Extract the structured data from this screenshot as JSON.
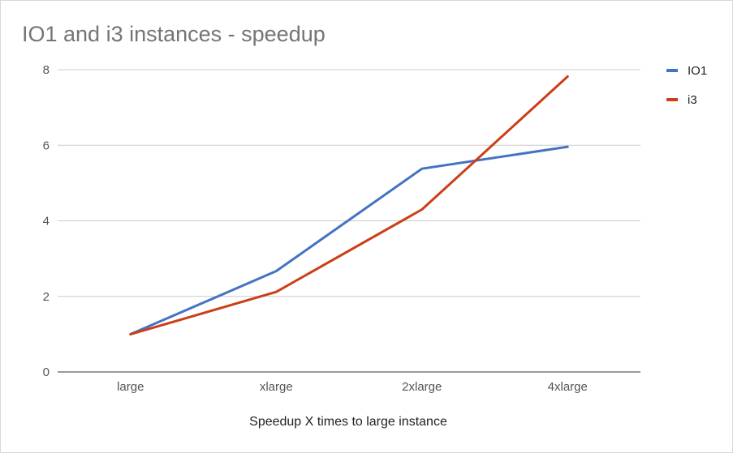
{
  "chart_data": {
    "type": "line",
    "title": "IO1 and i3 instances - speedup",
    "xlabel": "Speedup X times to large instance",
    "ylabel": "",
    "categories": [
      "large",
      "xlarge",
      "2xlarge",
      "4xlarge"
    ],
    "ylim": [
      0,
      8
    ],
    "yticks": [
      0,
      2,
      4,
      6,
      8
    ],
    "grid": true,
    "legend_position": "right",
    "series": [
      {
        "name": "IO1",
        "color": "#4472c4",
        "values": [
          1.0,
          2.67,
          5.38,
          5.96
        ]
      },
      {
        "name": "i3",
        "color": "#cc3e17",
        "values": [
          1.0,
          2.12,
          4.3,
          7.82
        ]
      }
    ]
  }
}
